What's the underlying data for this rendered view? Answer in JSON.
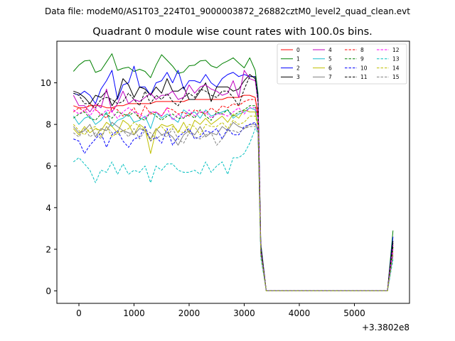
{
  "header": {
    "data_file_text": "Data file: modeM0/AS1T03_224T01_9000003872_26882cztM0_level2_quad_clean.evt"
  },
  "chart_data": {
    "type": "line",
    "title": "Quadrant 0 module wise count rates with 100.0s bins.",
    "xlabel": "",
    "ylabel": "",
    "x_offset_text": "+3.3802e8",
    "xlim": [
      -400,
      6000
    ],
    "ylim": [
      -0.6,
      12.0
    ],
    "x_ticks": [
      0,
      1000,
      2000,
      3000,
      4000,
      5000
    ],
    "x_tick_labels": [
      "0",
      "1000",
      "2000",
      "3000",
      "4000",
      "5000"
    ],
    "y_ticks": [
      0,
      2,
      4,
      6,
      8,
      10
    ],
    "y_tick_labels": [
      "0",
      "2",
      "4",
      "6",
      "8",
      "10"
    ],
    "legend": {
      "position": "top-right",
      "columns": 4
    },
    "x": [
      -100,
      0,
      100,
      200,
      300,
      400,
      500,
      600,
      700,
      800,
      900,
      1000,
      1100,
      1200,
      1300,
      1400,
      1500,
      1600,
      1700,
      1800,
      1900,
      2000,
      2100,
      2200,
      2300,
      2400,
      2500,
      2600,
      2700,
      2800,
      2900,
      3000,
      3100,
      3200,
      3250,
      3300,
      3400,
      3500,
      3600,
      3700,
      3800,
      3900,
      4000,
      4100,
      4200,
      4300,
      4400,
      4500,
      4600,
      4700,
      4800,
      4900,
      5000,
      5100,
      5200,
      5300,
      5400,
      5500,
      5600,
      5700
    ],
    "series": [
      {
        "name": "0",
        "color": "#ff0000",
        "dash": "solid",
        "values": [
          8.9,
          8.8,
          8.8,
          8.9,
          8.9,
          8.9,
          8.8,
          8.8,
          8.9,
          8.9,
          9.0,
          9.0,
          9.0,
          9.0,
          9.0,
          9.1,
          9.1,
          9.1,
          9.1,
          9.1,
          9.1,
          9.2,
          9.2,
          9.2,
          9.2,
          9.2,
          9.2,
          9.2,
          9.3,
          9.3,
          9.3,
          9.4,
          9.4,
          9.3,
          8.4,
          2.0,
          0,
          0,
          0,
          0,
          0,
          0,
          0,
          0,
          0,
          0,
          0,
          0,
          0,
          0,
          0,
          0,
          0,
          0,
          0,
          0,
          0,
          0,
          0,
          2.1
        ]
      },
      {
        "name": "1",
        "color": "#008000",
        "dash": "solid",
        "values": [
          10.55,
          10.85,
          11.05,
          11.08,
          10.5,
          10.6,
          11.0,
          11.4,
          10.6,
          10.7,
          10.75,
          10.55,
          10.65,
          10.55,
          10.25,
          10.85,
          11.35,
          11.08,
          10.8,
          10.45,
          10.52,
          10.82,
          10.85,
          11.05,
          11.08,
          10.82,
          10.72,
          10.92,
          11.05,
          11.2,
          10.95,
          10.72,
          11.2,
          10.6,
          9.5,
          2.3,
          0,
          0,
          0,
          0,
          0,
          0,
          0,
          0,
          0,
          0,
          0,
          0,
          0,
          0,
          0,
          0,
          0,
          0,
          0,
          0,
          0,
          0,
          0,
          2.9
        ]
      },
      {
        "name": "2",
        "color": "#0000ff",
        "dash": "solid",
        "values": [
          9.5,
          9.4,
          9.6,
          9.4,
          9.0,
          9.7,
          10.1,
          10.6,
          9.2,
          9.9,
          10.0,
          10.8,
          9.8,
          9.8,
          9.4,
          10.0,
          10.1,
          10.5,
          10.0,
          10.6,
          9.7,
          10.1,
          10.1,
          10.0,
          10.4,
          10.0,
          9.8,
          10.2,
          10.4,
          10.5,
          10.3,
          10.4,
          10.3,
          10.3,
          9.3,
          2.2,
          0,
          0,
          0,
          0,
          0,
          0,
          0,
          0,
          0,
          0,
          0,
          0,
          0,
          0,
          0,
          0,
          0,
          0,
          0,
          0,
          0,
          0,
          0,
          2.6
        ]
      },
      {
        "name": "3",
        "color": "#000000",
        "dash": "solid",
        "values": [
          9.6,
          9.5,
          9.3,
          9.0,
          9.4,
          9.3,
          9.6,
          8.9,
          9.3,
          10.2,
          9.9,
          9.3,
          9.8,
          9.7,
          9.4,
          9.8,
          9.5,
          10.2,
          9.6,
          9.6,
          9.8,
          9.2,
          9.2,
          9.6,
          10.0,
          9.1,
          9.8,
          9.8,
          9.8,
          9.6,
          9.7,
          10.1,
          10.4,
          10.2,
          9.2,
          2.1,
          0,
          0,
          0,
          0,
          0,
          0,
          0,
          0,
          0,
          0,
          0,
          0,
          0,
          0,
          0,
          0,
          0,
          0,
          0,
          0,
          0,
          0,
          0,
          2.4
        ]
      },
      {
        "name": "4",
        "color": "#bf00bf",
        "dash": "solid",
        "values": [
          9.4,
          8.9,
          8.9,
          8.6,
          9.0,
          8.8,
          9.7,
          8.6,
          9.0,
          9.6,
          9.0,
          9.2,
          9.1,
          9.3,
          9.5,
          9.2,
          9.4,
          9.4,
          9.6,
          9.2,
          9.3,
          9.9,
          9.5,
          9.8,
          9.9,
          9.7,
          9.6,
          9.4,
          9.5,
          10.1,
          9.3,
          10.6,
          10.2,
          10.1,
          9.1,
          2.0,
          0,
          0,
          0,
          0,
          0,
          0,
          0,
          0,
          0,
          0,
          0,
          0,
          0,
          0,
          0,
          0,
          0,
          0,
          0,
          0,
          0,
          0,
          0,
          2.2
        ]
      },
      {
        "name": "5",
        "color": "#17becf",
        "dash": "solid",
        "values": [
          8.4,
          8.0,
          8.3,
          8.4,
          8.0,
          8.2,
          8.6,
          7.9,
          8.2,
          8.3,
          8.5,
          8.1,
          8.2,
          8.4,
          7.8,
          8.6,
          8.3,
          8.5,
          8.3,
          8.1,
          8.7,
          8.5,
          8.6,
          8.3,
          8.7,
          8.4,
          8.5,
          8.6,
          8.7,
          8.3,
          8.5,
          8.6,
          8.8,
          8.7,
          8.0,
          1.9,
          0,
          0,
          0,
          0,
          0,
          0,
          0,
          0,
          0,
          0,
          0,
          0,
          0,
          0,
          0,
          0,
          0,
          0,
          0,
          0,
          0,
          0,
          0,
          2.0
        ]
      },
      {
        "name": "6",
        "color": "#bfbf00",
        "dash": "solid",
        "values": [
          7.8,
          7.5,
          7.9,
          7.6,
          7.8,
          7.7,
          8.1,
          7.9,
          7.6,
          8.2,
          8.0,
          7.5,
          8.0,
          7.8,
          6.6,
          7.7,
          8.0,
          7.9,
          8.0,
          7.6,
          8.1,
          7.6,
          8.2,
          8.0,
          8.3,
          8.0,
          8.2,
          8.4,
          8.1,
          8.5,
          8.3,
          8.7,
          8.6,
          8.6,
          7.9,
          1.8,
          0,
          0,
          0,
          0,
          0,
          0,
          0,
          0,
          0,
          0,
          0,
          0,
          0,
          0,
          0,
          0,
          0,
          0,
          0,
          0,
          0,
          0,
          0,
          1.9
        ]
      },
      {
        "name": "7",
        "color": "#808080",
        "dash": "solid",
        "values": [
          7.9,
          7.6,
          7.7,
          8.0,
          7.4,
          7.8,
          7.7,
          8.1,
          7.9,
          7.7,
          7.6,
          7.5,
          7.8,
          7.7,
          7.3,
          7.8,
          7.5,
          7.6,
          7.4,
          7.0,
          7.5,
          7.7,
          7.5,
          7.9,
          7.4,
          7.6,
          7.5,
          7.9,
          7.7,
          8.1,
          7.9,
          7.8,
          8.0,
          8.0,
          7.8,
          1.8,
          0,
          0,
          0,
          0,
          0,
          0,
          0,
          0,
          0,
          0,
          0,
          0,
          0,
          0,
          0,
          0,
          0,
          0,
          0,
          0,
          0,
          0,
          0,
          1.8
        ]
      },
      {
        "name": "8",
        "color": "#ff0000",
        "dash": "dashed",
        "values": [
          8.6,
          8.8,
          8.6,
          9.0,
          8.7,
          8.5,
          8.3,
          8.8,
          8.7,
          8.4,
          8.5,
          8.8,
          8.3,
          8.9,
          8.5,
          8.6,
          8.4,
          8.8,
          8.7,
          8.5,
          8.6,
          8.4,
          8.7,
          8.6,
          8.5,
          8.8,
          8.6,
          8.9,
          8.8,
          9.0,
          8.9,
          9.1,
          9.2,
          9.2,
          8.6,
          2.0,
          0,
          0,
          0,
          0,
          0,
          0,
          0,
          0,
          0,
          0,
          0,
          0,
          0,
          0,
          0,
          0,
          0,
          0,
          0,
          0,
          0,
          0,
          0,
          2.2
        ]
      },
      {
        "name": "9",
        "color": "#008000",
        "dash": "dashed",
        "values": [
          8.3,
          8.5,
          8.6,
          8.3,
          8.2,
          8.5,
          8.5,
          8.3,
          8.6,
          8.5,
          8.4,
          8.6,
          8.3,
          8.2,
          8.6,
          8.4,
          8.2,
          8.4,
          8.5,
          8.3,
          8.3,
          8.5,
          8.3,
          8.7,
          8.4,
          8.2,
          8.6,
          8.5,
          8.7,
          8.4,
          8.6,
          8.7,
          8.9,
          8.9,
          8.3,
          1.9,
          0,
          0,
          0,
          0,
          0,
          0,
          0,
          0,
          0,
          0,
          0,
          0,
          0,
          0,
          0,
          0,
          0,
          0,
          0,
          0,
          0,
          0,
          0,
          2.1
        ]
      },
      {
        "name": "10",
        "color": "#0000ff",
        "dash": "dashed",
        "values": [
          7.3,
          7.2,
          6.6,
          7.0,
          7.3,
          7.6,
          6.9,
          7.5,
          7.7,
          7.2,
          6.9,
          7.3,
          7.4,
          7.9,
          7.2,
          7.4,
          7.1,
          7.8,
          7.0,
          7.4,
          7.6,
          7.8,
          7.3,
          7.4,
          7.7,
          7.6,
          7.8,
          7.3,
          7.8,
          7.5,
          7.5,
          7.9,
          8.0,
          8.1,
          7.7,
          1.8,
          0,
          0,
          0,
          0,
          0,
          0,
          0,
          0,
          0,
          0,
          0,
          0,
          0,
          0,
          0,
          0,
          0,
          0,
          0,
          0,
          0,
          0,
          0,
          1.7
        ]
      },
      {
        "name": "11",
        "color": "#000000",
        "dash": "dashed",
        "values": [
          9.5,
          9.4,
          9.0,
          9.0,
          8.8,
          9.2,
          9.3,
          9.2,
          9.0,
          9.1,
          9.5,
          9.2,
          8.9,
          9.6,
          9.0,
          9.4,
          9.2,
          9.5,
          9.1,
          8.9,
          9.3,
          9.5,
          9.3,
          9.7,
          9.6,
          9.4,
          9.3,
          9.6,
          9.6,
          9.3,
          8.9,
          9.7,
          10.3,
          10.3,
          9.1,
          2.1,
          0,
          0,
          0,
          0,
          0,
          0,
          0,
          0,
          0,
          0,
          0,
          0,
          0,
          0,
          0,
          0,
          0,
          0,
          0,
          0,
          0,
          0,
          0,
          2.3
        ]
      },
      {
        "name": "12",
        "color": "#ff00ff",
        "dash": "dashed",
        "values": [
          8.7,
          8.5,
          8.7,
          8.4,
          8.8,
          8.4,
          8.7,
          8.6,
          8.3,
          8.6,
          8.8,
          8.6,
          8.5,
          8.3,
          8.6,
          8.6,
          8.4,
          8.8,
          8.2,
          8.5,
          8.3,
          8.7,
          8.4,
          8.6,
          8.6,
          8.3,
          8.5,
          8.5,
          8.4,
          8.6,
          8.8,
          8.5,
          8.8,
          8.8,
          8.3,
          1.9,
          0,
          0,
          0,
          0,
          0,
          0,
          0,
          0,
          0,
          0,
          0,
          0,
          0,
          0,
          0,
          0,
          0,
          0,
          0,
          0,
          0,
          0,
          0,
          2.0
        ]
      },
      {
        "name": "13",
        "color": "#00bfbf",
        "dash": "dashed",
        "values": [
          6.2,
          6.4,
          6.1,
          5.8,
          5.2,
          5.8,
          5.7,
          6.2,
          5.6,
          6.1,
          5.6,
          5.8,
          5.7,
          6.0,
          5.2,
          6.0,
          5.8,
          6.1,
          6.1,
          5.8,
          5.7,
          5.7,
          5.8,
          5.6,
          6.2,
          5.7,
          6.0,
          6.2,
          5.6,
          6.4,
          6.4,
          6.6,
          7.1,
          7.8,
          7.6,
          1.6,
          0,
          0,
          0,
          0,
          0,
          0,
          0,
          0,
          0,
          0,
          0,
          0,
          0,
          0,
          0,
          0,
          0,
          0,
          0,
          0,
          0,
          0,
          0,
          1.5
        ]
      },
      {
        "name": "14",
        "color": "#bfbf00",
        "dash": "dashed",
        "values": [
          8.0,
          7.7,
          7.5,
          7.8,
          7.9,
          7.4,
          7.9,
          7.4,
          7.6,
          7.7,
          7.8,
          8.1,
          7.9,
          7.7,
          7.2,
          7.8,
          7.9,
          7.6,
          7.9,
          7.7,
          7.6,
          8.0,
          7.9,
          7.5,
          8.0,
          7.9,
          7.9,
          8.1,
          7.8,
          8.2,
          8.0,
          8.1,
          8.4,
          8.4,
          7.9,
          1.8,
          0,
          0,
          0,
          0,
          0,
          0,
          0,
          0,
          0,
          0,
          0,
          0,
          0,
          0,
          0,
          0,
          0,
          0,
          0,
          0,
          0,
          0,
          0,
          1.8
        ]
      },
      {
        "name": "15",
        "color": "#808080",
        "dash": "dashed",
        "values": [
          7.6,
          7.4,
          7.8,
          7.4,
          7.6,
          7.3,
          7.9,
          7.6,
          7.5,
          7.7,
          7.4,
          7.8,
          7.3,
          7.7,
          7.6,
          7.3,
          7.5,
          7.4,
          7.8,
          7.3,
          7.1,
          7.6,
          7.4,
          7.3,
          7.5,
          7.6,
          7.0,
          7.3,
          7.7,
          7.7,
          7.6,
          7.8,
          7.9,
          7.9,
          7.7,
          1.8,
          0,
          0,
          0,
          0,
          0,
          0,
          0,
          0,
          0,
          0,
          0,
          0,
          0,
          0,
          0,
          0,
          0,
          0,
          0,
          0,
          0,
          0,
          0,
          1.7
        ]
      }
    ]
  }
}
